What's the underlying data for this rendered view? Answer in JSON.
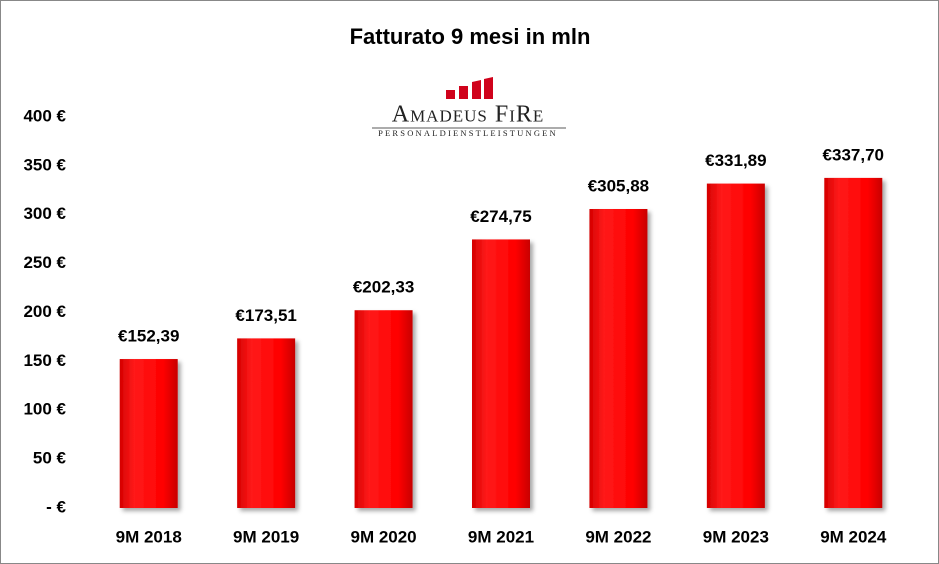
{
  "chart_data": {
    "type": "bar",
    "title": "Fatturato 9 mesi in mln",
    "logo": {
      "name": "Amadeus FiRe",
      "tagline": "PERSONALDIENSTLEISTUNGEN"
    },
    "categories": [
      "9M 2018",
      "9M 2019",
      "9M 2020",
      "9M 2021",
      "9M 2022",
      "9M 2023",
      "9M 2024"
    ],
    "values": [
      152.39,
      173.51,
      202.33,
      274.75,
      305.88,
      331.89,
      337.7
    ],
    "value_labels": [
      "€152,39",
      "€173,51",
      "€202,33",
      "€274,75",
      "€305,88",
      "€331,89",
      "€337,70"
    ],
    "color": "#ff0000",
    "ylim": [
      0,
      400
    ],
    "yticks": [
      {
        "value": 0,
        "label": "- €"
      },
      {
        "value": 50,
        "label": "50 €"
      },
      {
        "value": 100,
        "label": "100 €"
      },
      {
        "value": 150,
        "label": "150 €"
      },
      {
        "value": 200,
        "label": "200 €"
      },
      {
        "value": 250,
        "label": "250 €"
      },
      {
        "value": 300,
        "label": "300 €"
      },
      {
        "value": 350,
        "label": "350 €"
      },
      {
        "value": 400,
        "label": "400 €"
      }
    ],
    "grid": false
  }
}
